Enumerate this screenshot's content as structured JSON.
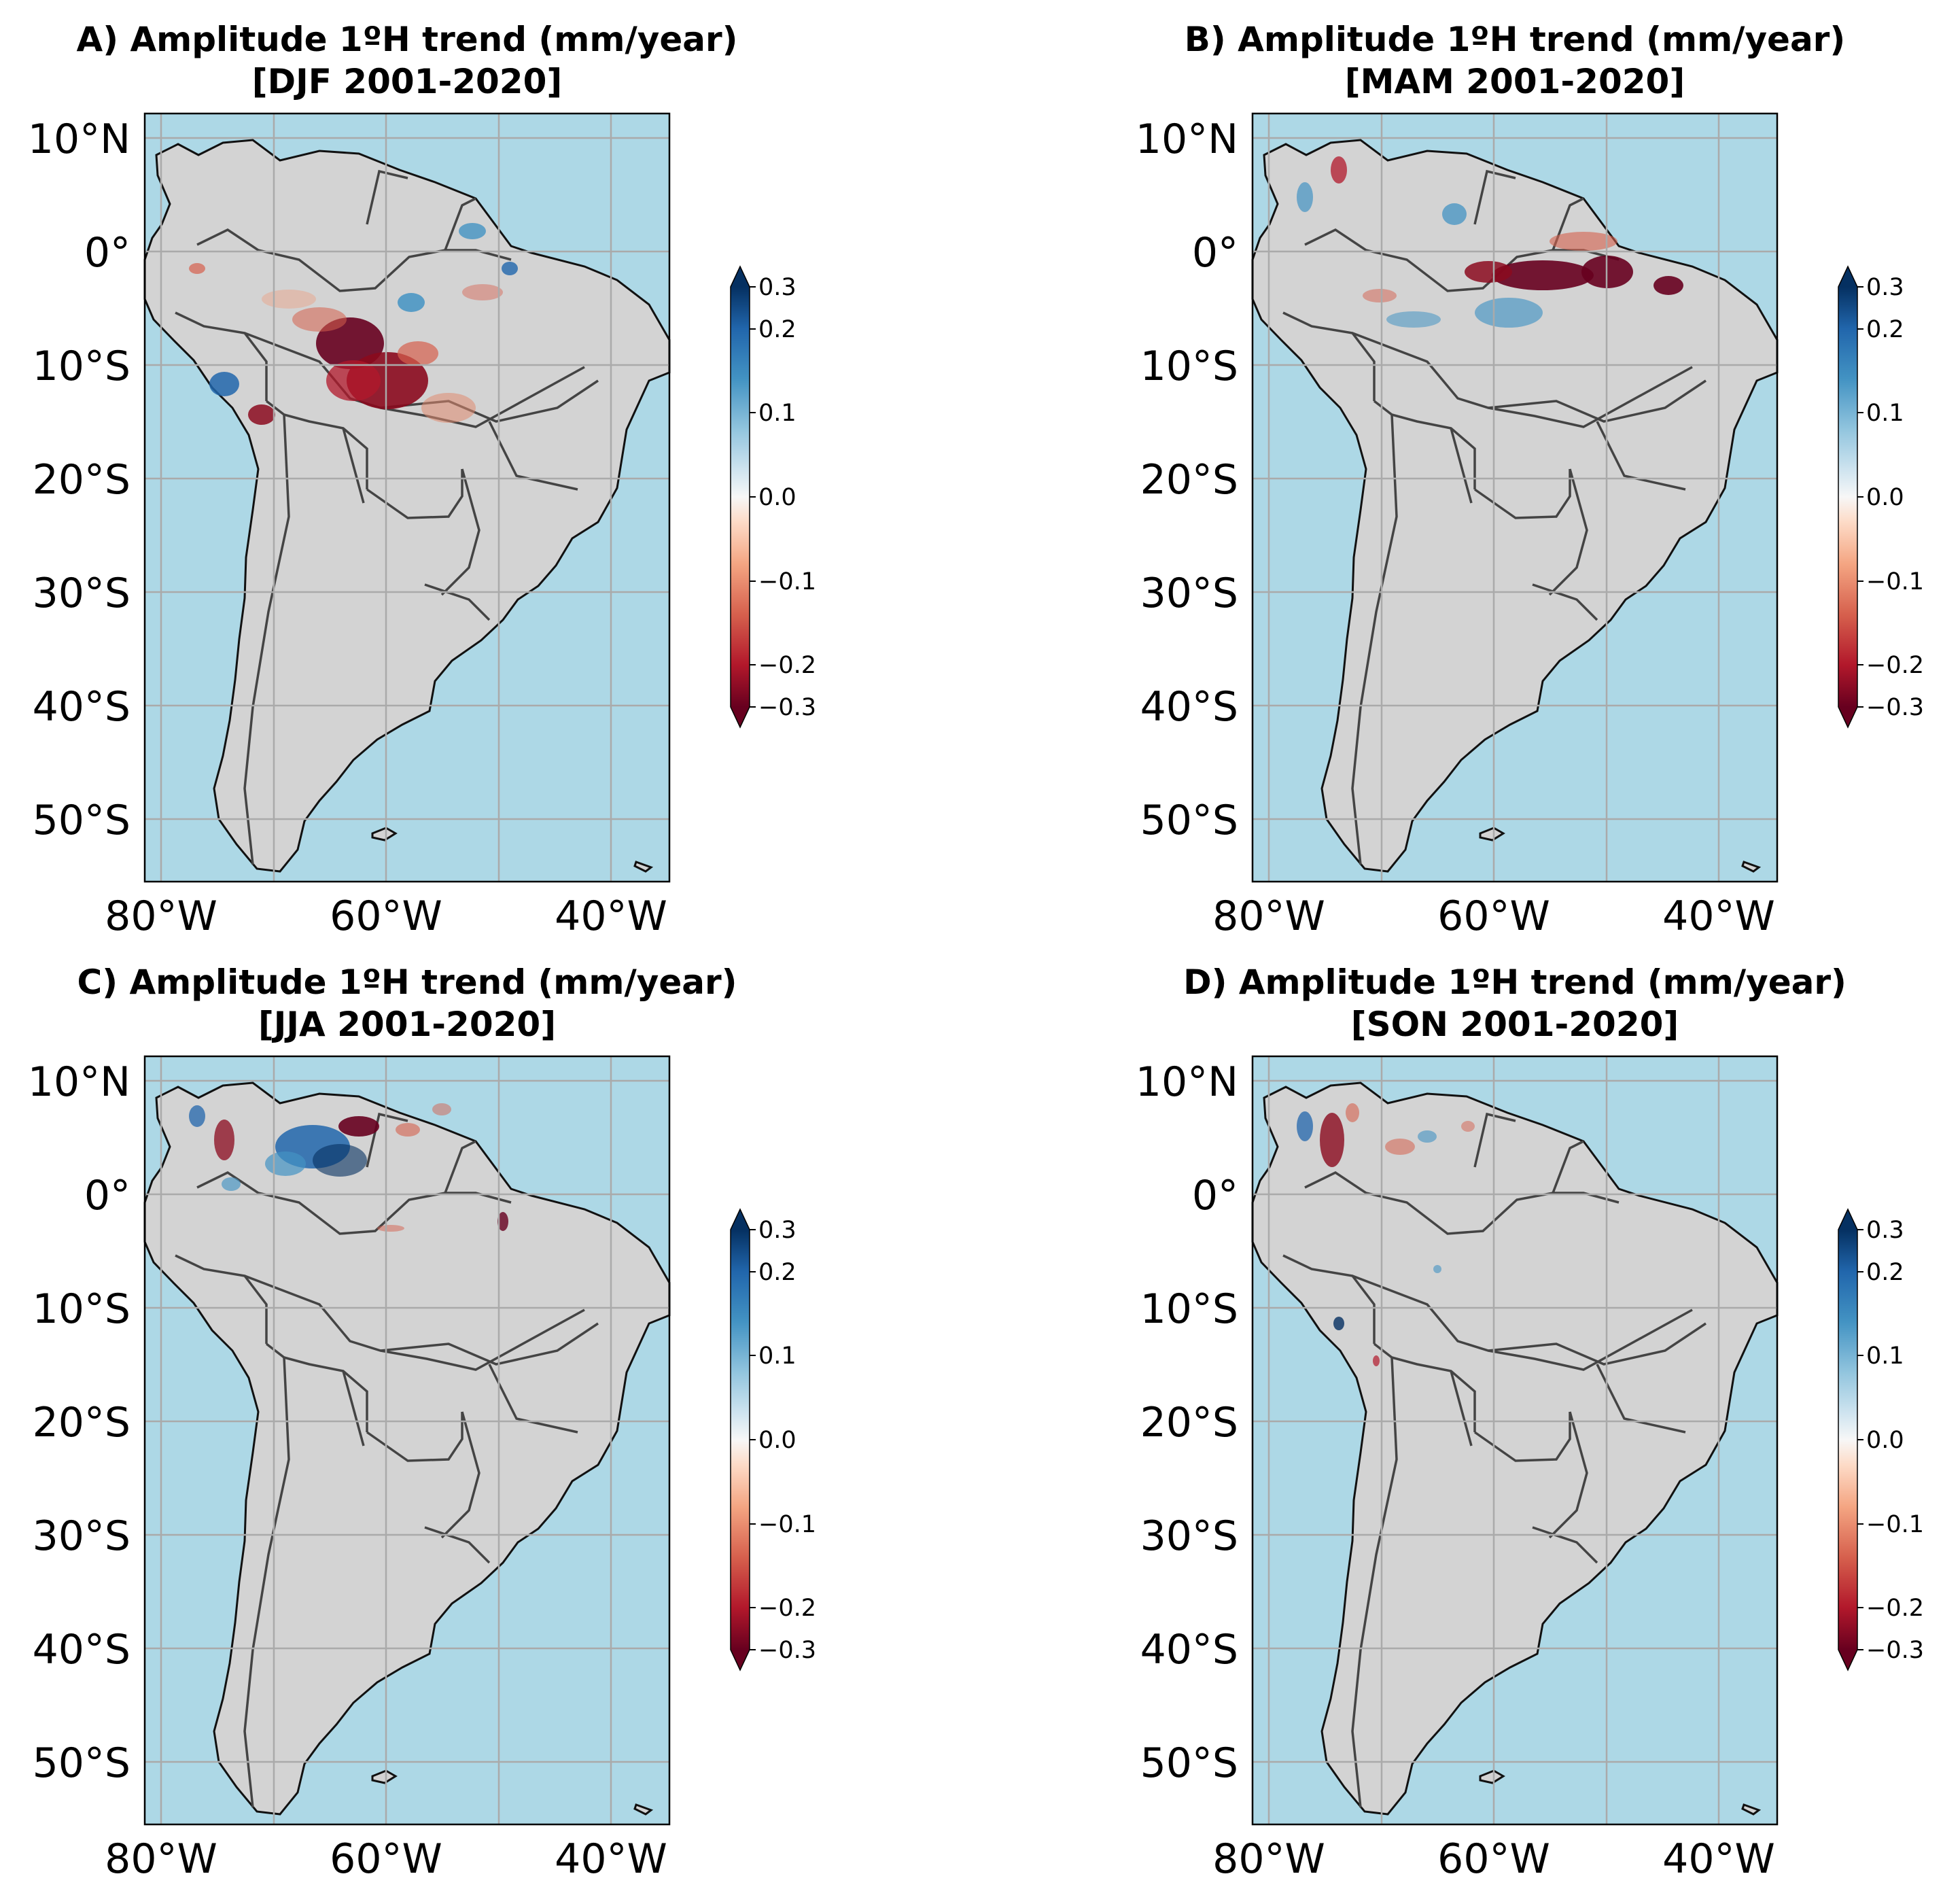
{
  "figure": {
    "panels": [
      {
        "id": "A",
        "title_line1": "A) Amplitude 1ºH trend (mm/year)",
        "title_line2": "[DJF 2001-2020]"
      },
      {
        "id": "B",
        "title_line1": "B) Amplitude 1ºH trend (mm/year)",
        "title_line2": "[MAM 2001-2020]"
      },
      {
        "id": "C",
        "title_line1": "C) Amplitude 1ºH trend (mm/year)",
        "title_line2": "[JJA 2001-2020]"
      },
      {
        "id": "D",
        "title_line1": "D) Amplitude 1ºH trend (mm/year)",
        "title_line2": "[SON 2001-2020]"
      }
    ],
    "lat_labels": [
      "10°N",
      "0°",
      "10°S",
      "20°S",
      "30°S",
      "40°S",
      "50°S"
    ],
    "lon_labels": [
      "80°W",
      "60°W",
      "40°W"
    ],
    "colorbar": {
      "ticks": [
        "0.3",
        "0.2",
        "0.1",
        "0.0",
        "−0.1",
        "−0.2",
        "−0.3"
      ],
      "tick_values": [
        0.3,
        0.2,
        0.1,
        0.0,
        -0.1,
        -0.2,
        -0.3
      ],
      "range": [
        -0.3,
        0.3
      ],
      "colors": [
        "#67001f",
        "#b2182b",
        "#d6604d",
        "#f4a582",
        "#fddbc7",
        "#f7f7f7",
        "#d1e5f0",
        "#92c5de",
        "#4393c3",
        "#2166ac",
        "#053061"
      ]
    },
    "map_extent": {
      "lon": [
        -82,
        -35
      ],
      "lat": [
        -56,
        12
      ]
    },
    "colors": {
      "ocean": "#add8e6",
      "land": "#d3d3d3",
      "grid": "#aaaaaa",
      "border": "#444444",
      "coast": "#111111"
    }
  }
}
